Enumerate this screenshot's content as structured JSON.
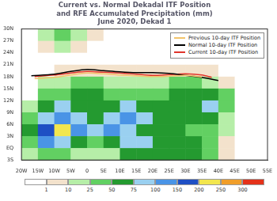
{
  "chart_data": {
    "type": "map",
    "title": [
      "Current vs. Normal Dekadal ITF Position",
      "and RFE Accumulated Precipitation (mm)",
      "June 2020, Dekad 1"
    ],
    "xlim": [
      -20,
      55
    ],
    "xticks": [
      {
        "value": -20,
        "label": "20W"
      },
      {
        "value": -15,
        "label": "15W"
      },
      {
        "value": -10,
        "label": "10W"
      },
      {
        "value": -5,
        "label": "5W"
      },
      0,
      {
        "value": 5,
        "label": "5E"
      },
      {
        "value": 10,
        "label": "10E"
      },
      {
        "value": 15,
        "label": "15E"
      },
      {
        "value": 20,
        "label": "20E"
      },
      {
        "value": 25,
        "label": "25E"
      },
      {
        "value": 30,
        "label": "30E"
      },
      {
        "value": 35,
        "label": "35E"
      },
      {
        "value": 40,
        "label": "40E"
      },
      {
        "value": 45,
        "label": "45E"
      },
      {
        "value": 50,
        "label": "50E"
      },
      {
        "value": 55,
        "label": "55E"
      }
    ],
    "ylim": [
      -3,
      30
    ],
    "yticks": [
      {
        "value": -3,
        "label": "3S"
      },
      {
        "value": 0,
        "label": "EQ"
      },
      {
        "value": 3,
        "label": "3N"
      },
      {
        "value": 6,
        "label": "6N"
      },
      {
        "value": 9,
        "label": "9N"
      },
      {
        "value": 12,
        "label": "12N"
      },
      {
        "value": 15,
        "label": "15N"
      },
      {
        "value": 18,
        "label": "18N"
      },
      {
        "value": 21,
        "label": "21N"
      },
      {
        "value": 24,
        "label": "24N"
      },
      {
        "value": 27,
        "label": "27N"
      },
      {
        "value": 30,
        "label": "30N"
      }
    ],
    "grid": false,
    "legend": "upper right",
    "series": [
      {
        "name": "Previous 10-day ITF Position",
        "color": "#f2c46b",
        "x": [
          -16,
          -10,
          -5,
          0,
          5,
          10,
          15,
          20,
          25,
          30,
          35
        ],
        "values": [
          17.5,
          17.8,
          18.4,
          18.9,
          18.7,
          18.4,
          18.2,
          18.0,
          18.1,
          18.3,
          17.9
        ]
      },
      {
        "name": "Normal 10-day ITF Position",
        "color": "#000000",
        "x": [
          -17,
          -10,
          -5,
          0,
          5,
          10,
          15,
          20,
          25,
          30,
          35,
          40
        ],
        "values": [
          18.2,
          18.6,
          19.3,
          19.8,
          19.5,
          19.2,
          19.0,
          19.0,
          18.8,
          18.3,
          17.8,
          17.0
        ]
      },
      {
        "name": "Current 10-day ITF Position",
        "color": "#e0352b",
        "x": [
          -16,
          -10,
          -5,
          0,
          5,
          10,
          15,
          20,
          25,
          30,
          35,
          38
        ],
        "values": [
          18.0,
          18.4,
          18.9,
          19.3,
          19.1,
          18.9,
          18.6,
          18.3,
          18.5,
          18.7,
          18.4,
          17.8
        ]
      }
    ],
    "precipitation": {
      "lon_edges": [
        -20,
        -15,
        -10,
        -5,
        0,
        5,
        10,
        15,
        20,
        25,
        30,
        35,
        40,
        45,
        50,
        55
      ],
      "lat_edges": [
        30,
        27,
        24,
        21,
        18,
        15,
        12,
        9,
        6,
        3,
        0,
        -3
      ],
      "values": [
        [
          0,
          10,
          25,
          10,
          5,
          0,
          0,
          0,
          0,
          0,
          0,
          0,
          0,
          0,
          0
        ],
        [
          0,
          5,
          10,
          5,
          0,
          0,
          0,
          0,
          0,
          0,
          0,
          0,
          0,
          0,
          0
        ],
        [
          0,
          0,
          0,
          0,
          0,
          0,
          0,
          0,
          0,
          0,
          0,
          0,
          0,
          0,
          0
        ],
        [
          0,
          0,
          5,
          5,
          5,
          5,
          5,
          5,
          5,
          5,
          5,
          5,
          0,
          0,
          0
        ],
        [
          0,
          10,
          10,
          25,
          25,
          10,
          10,
          10,
          10,
          25,
          25,
          10,
          5,
          0,
          0
        ],
        [
          0,
          25,
          25,
          50,
          50,
          25,
          25,
          25,
          25,
          50,
          50,
          50,
          25,
          0,
          0
        ],
        [
          10,
          50,
          75,
          50,
          50,
          50,
          75,
          50,
          50,
          50,
          50,
          75,
          25,
          0,
          0
        ],
        [
          25,
          75,
          100,
          75,
          50,
          75,
          100,
          75,
          50,
          50,
          50,
          50,
          10,
          0,
          0
        ],
        [
          50,
          150,
          200,
          100,
          75,
          100,
          75,
          50,
          50,
          50,
          25,
          25,
          10,
          0,
          0
        ],
        [
          25,
          100,
          75,
          50,
          25,
          50,
          75,
          75,
          50,
          50,
          50,
          25,
          5,
          0,
          0
        ],
        [
          10,
          25,
          25,
          10,
          10,
          10,
          50,
          50,
          50,
          50,
          50,
          25,
          5,
          0,
          0
        ]
      ]
    },
    "colorbar": {
      "ticks": [
        1,
        10,
        25,
        50,
        75,
        100,
        150,
        200,
        250,
        300
      ],
      "colors": [
        "#ffffff",
        "#f3e2cc",
        "#b6eea8",
        "#62d062",
        "#249a30",
        "#9ad0f0",
        "#4a94e6",
        "#1e4fc4",
        "#f2e64e",
        "#f09e2a",
        "#e4321a"
      ]
    }
  }
}
